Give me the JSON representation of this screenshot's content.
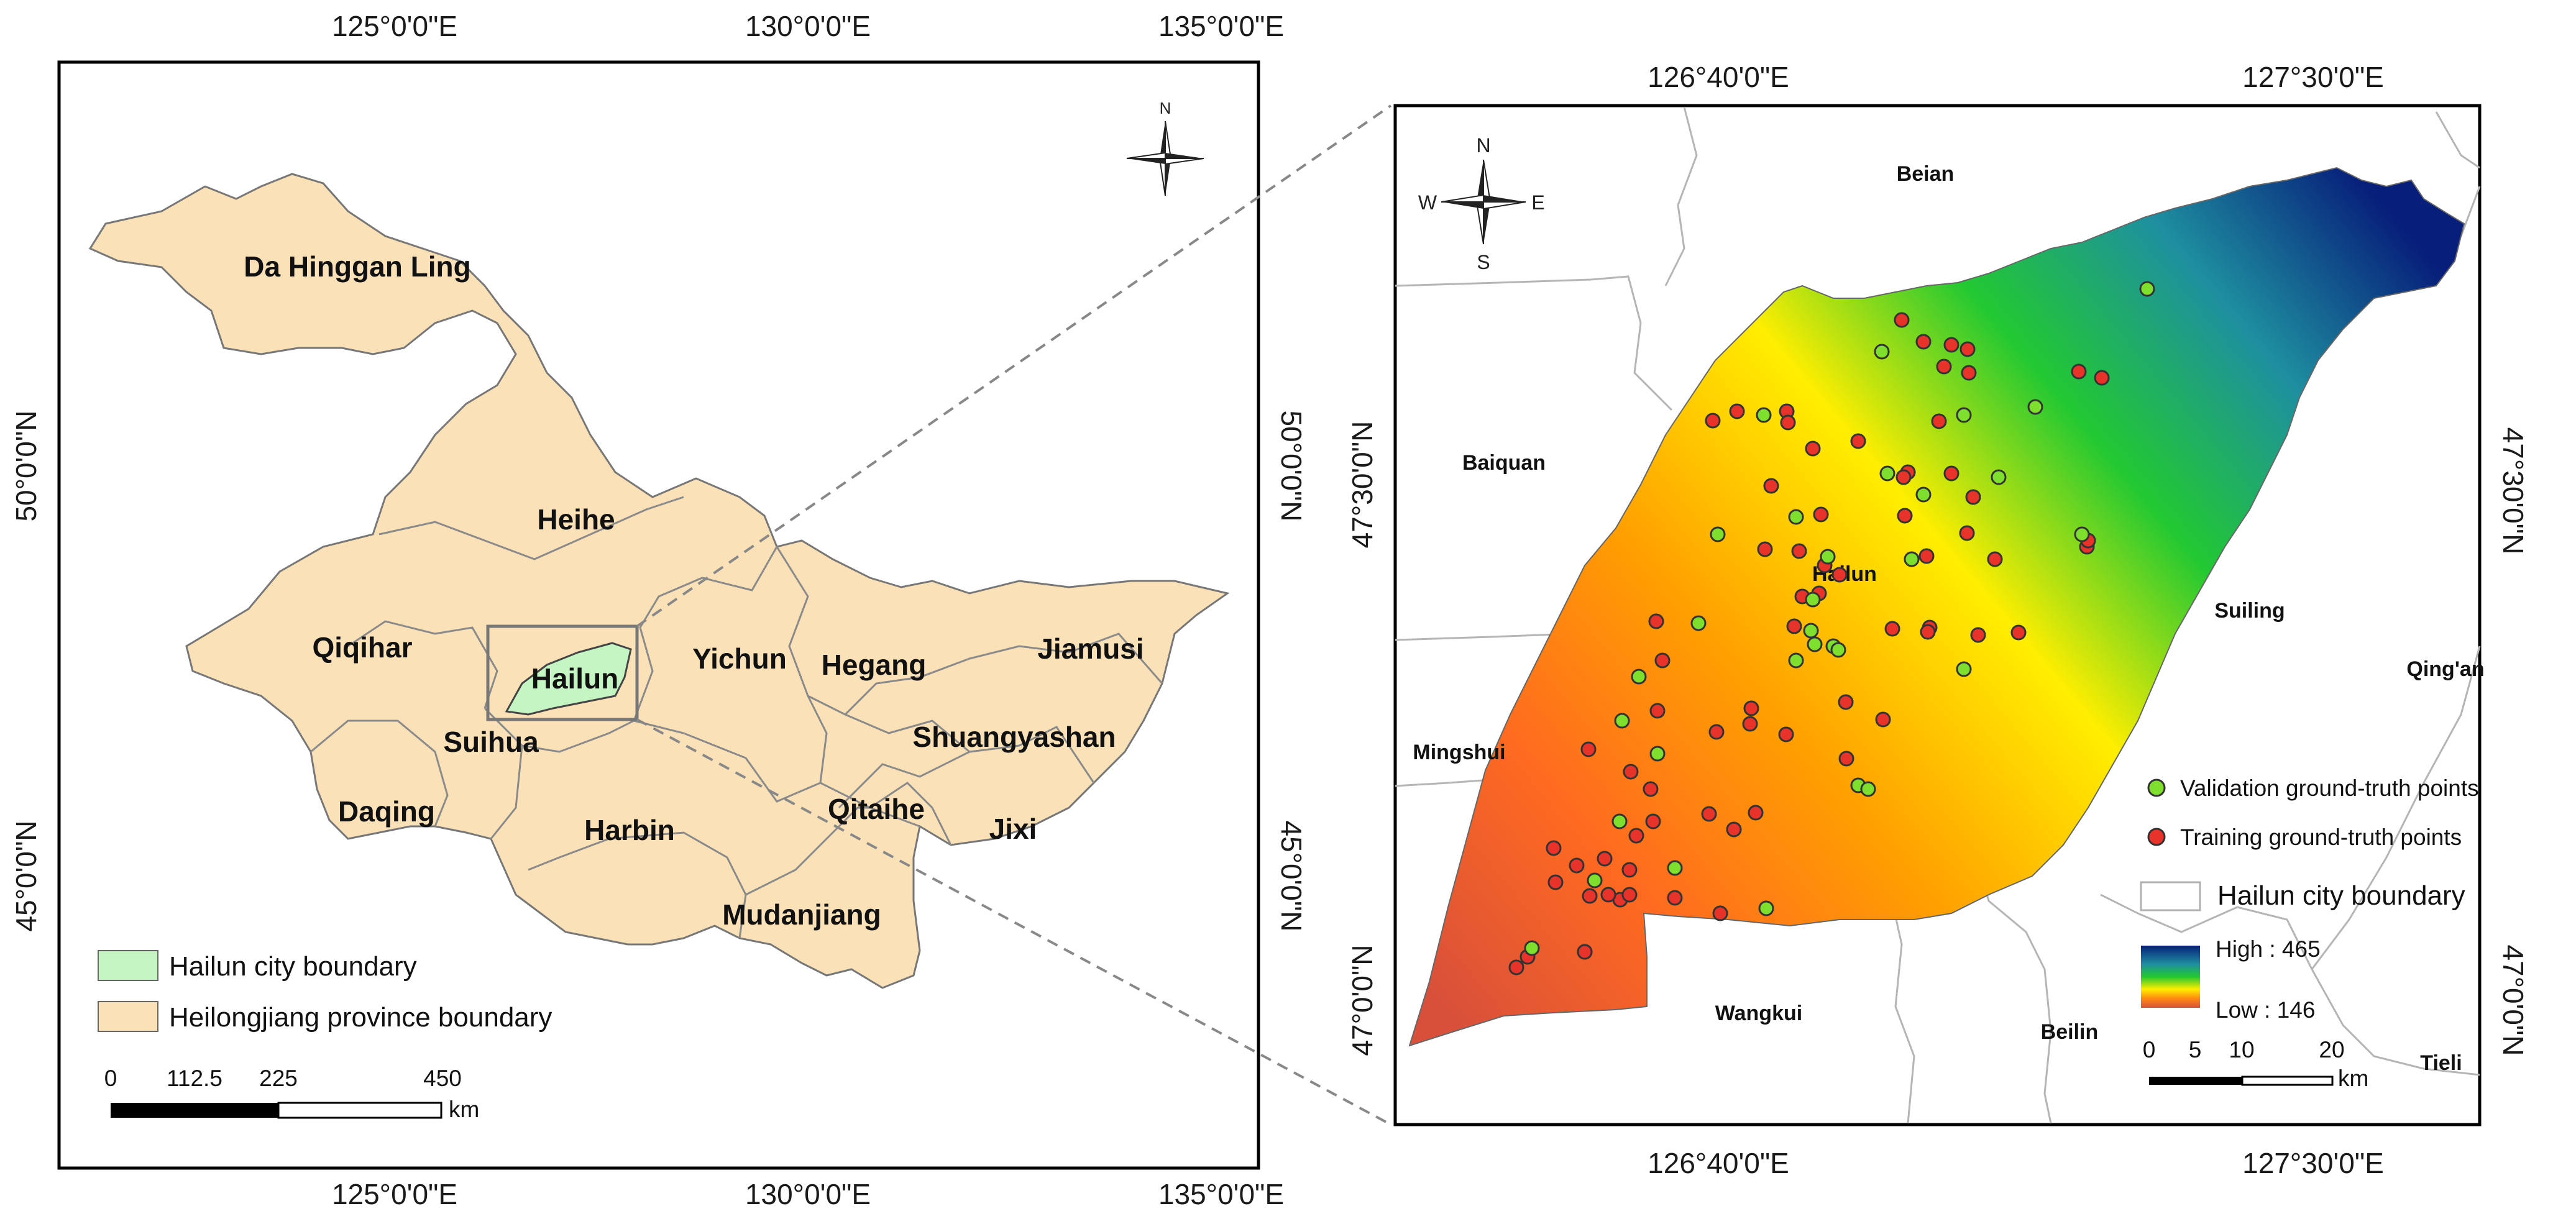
{
  "left_map": {
    "top_ticks": [
      "125°0'0\"E",
      "130°0'0\"E",
      "135°0'0\"E"
    ],
    "bottom_ticks": [
      "125°0'0\"E",
      "130°0'0\"E",
      "135°0'0\"E"
    ],
    "left_ticks": [
      "50°0'0\"N",
      "45°0'0\"N"
    ],
    "right_ticks": [
      "50°0'0\"N",
      "45°0'0\"N"
    ],
    "north_label": "N",
    "regions": [
      "Da Hinggan Ling",
      "Heihe",
      "Qiqihar",
      "Hailun",
      "Yichun",
      "Hegang",
      "Jiamusi",
      "Suihua",
      "Shuangyashan",
      "Daqing",
      "Harbin",
      "Qitaihe",
      "Jixi",
      "Mudanjiang"
    ],
    "legend": [
      "Hailun city boundary",
      "Heilongjiang province boundary"
    ],
    "scale_labels": [
      "0",
      "112.5",
      "225",
      "450"
    ],
    "scale_unit": "km",
    "colors": {
      "province_fill": "#fbe1b7",
      "hailun_fill": "#c6f5c4",
      "outline": "#777777"
    }
  },
  "right_map": {
    "top_ticks": [
      "126°40'0\"E",
      "127°30'0\"E"
    ],
    "bottom_ticks": [
      "126°40'0\"E",
      "127°30'0\"E"
    ],
    "left_ticks": [
      "47°30'0\"N",
      "47°0'0\"N"
    ],
    "right_ticks": [
      "47°30'0\"N",
      "47°0'0\"N"
    ],
    "compass": {
      "n": "N",
      "s": "S",
      "w": "W",
      "e": "E"
    },
    "neighbors": [
      "Beian",
      "Baiquan",
      "Suiling",
      "Qing'an",
      "Mingshui",
      "Wangkui",
      "Beilin",
      "Tieli"
    ],
    "city_label": "Hailun",
    "legend": {
      "validation": "Validation ground-truth points",
      "training": "Training ground-truth points",
      "boundary": "Hailun city boundary",
      "high": "High : 465",
      "low": "Low : 146"
    },
    "scale_labels": [
      "0",
      "5",
      "10",
      "20"
    ],
    "scale_unit": "km",
    "colors": {
      "validation": "#7ee02c",
      "training": "#e8332b",
      "low": "#d9503a",
      "mid": "#ffee00",
      "green": "#22c832",
      "high": "#071f7a"
    }
  }
}
